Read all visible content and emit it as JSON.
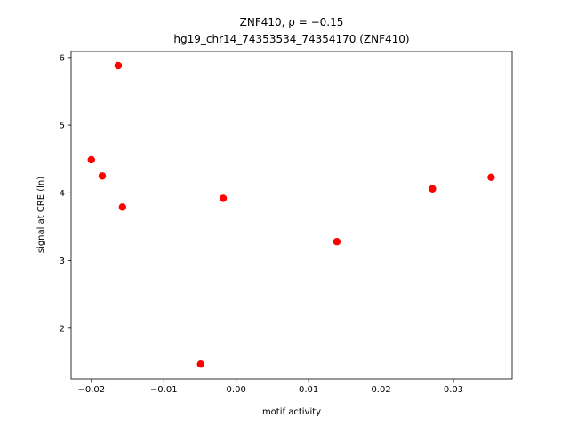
{
  "chart_data": {
    "type": "scatter",
    "title": "ZNF410, ρ = −0.15",
    "subtitle": "hg19_chr14_74353534_74354170 (ZNF410)",
    "x_label": "motif activity",
    "y_label": "signal at CRE (ln)",
    "series": [
      {
        "color": "#ff0000",
        "x": [
          -0.02,
          -0.0185,
          -0.0163,
          -0.0157,
          -0.0049,
          -0.0018,
          0.0139,
          0.0271,
          0.0352
        ],
        "values": [
          4.49,
          4.25,
          5.88,
          3.79,
          1.47,
          3.92,
          3.28,
          4.06,
          4.23
        ]
      }
    ],
    "xlim": [
      -0.0228,
      0.0381
    ],
    "ylim": [
      1.25,
      6.09
    ],
    "xticks": [
      {
        "value": -0.02,
        "label": "−0.02"
      },
      {
        "value": -0.01,
        "label": "−0.01"
      },
      {
        "value": 0,
        "label": "0.00"
      },
      0.01,
      0.02,
      0.03
    ],
    "yticks": [
      2,
      3,
      4,
      5,
      6
    ],
    "grid": false
  }
}
